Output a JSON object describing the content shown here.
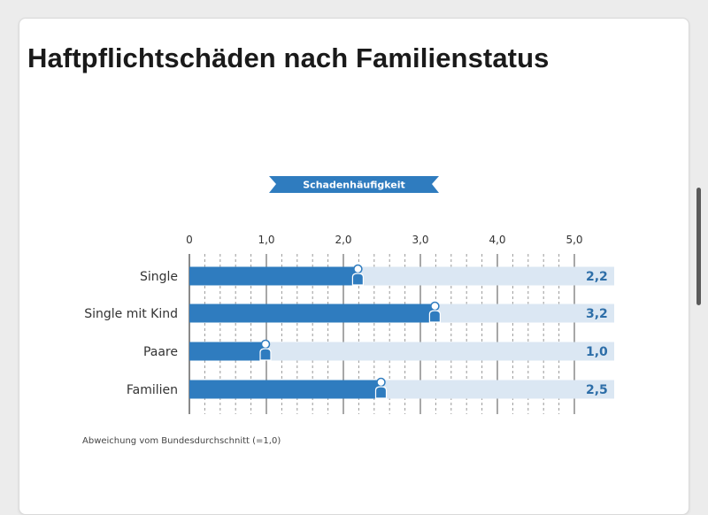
{
  "page": {
    "title": "Haftpflichtschäden nach Familienstatus"
  },
  "chart_data": {
    "type": "bar",
    "orientation": "horizontal",
    "title": "Schadenhäufigkeit",
    "categories": [
      "Single",
      "Single mit Kind",
      "Paare",
      "Familien"
    ],
    "values": [
      2.2,
      3.2,
      1.0,
      2.5
    ],
    "value_labels": [
      "2,2",
      "3,2",
      "1,0",
      "2,5"
    ],
    "x_ticks": [
      0,
      1.0,
      2.0,
      3.0,
      4.0,
      5.0
    ],
    "x_tick_labels": [
      "0",
      "1,0",
      "2,0",
      "3,0",
      "4,0",
      "5,0"
    ],
    "xlim": [
      0,
      5.0
    ],
    "footnote": "Abweichung vom Bundesdurchschnitt (=1,0)",
    "grid": true,
    "colors": {
      "bar": "#2f7cbf",
      "track": "#dbe7f3",
      "value_text": "#2d6ea8",
      "banner": "#2f7cbf"
    }
  }
}
